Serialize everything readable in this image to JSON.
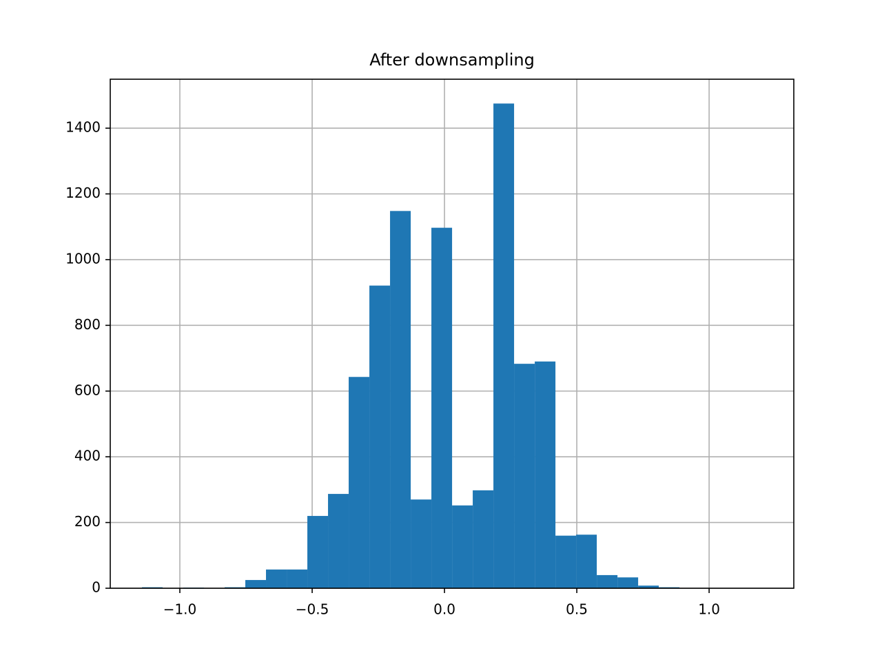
{
  "chart_data": {
    "type": "histogram",
    "title": "After downsampling",
    "color": "#1f77b4",
    "grid": true,
    "bins": [
      -1.1432,
      -1.0651,
      -0.987,
      -0.9088,
      -0.8307,
      -0.7526,
      -0.6745,
      -0.5963,
      -0.5182,
      -0.4401,
      -0.362,
      -0.2838,
      -0.2057,
      -0.1276,
      -0.0495,
      0.0287,
      0.1068,
      0.1849,
      0.263,
      0.3412,
      0.4193,
      0.4974,
      0.5755,
      0.6537,
      0.7318,
      0.8099,
      0.888,
      0.9662,
      1.0443,
      1.1224,
      1.2005
    ],
    "counts": [
      3,
      0,
      2,
      0,
      3,
      25,
      57,
      57,
      220,
      287,
      643,
      921,
      1148,
      270,
      1097,
      252,
      298,
      1475,
      683,
      690,
      160,
      163,
      40,
      33,
      8,
      3,
      1,
      0,
      0,
      1
    ],
    "xlim": [
      -1.263,
      1.32
    ],
    "ylim": [
      0,
      1549
    ],
    "xticks": [
      {
        "value": -1.0,
        "label": "−1.0"
      },
      {
        "value": -0.5,
        "label": "−0.5"
      },
      {
        "value": 0,
        "label": "0.0"
      },
      0.5,
      {
        "value": 1.0,
        "label": "1.0"
      }
    ],
    "yticks": [
      0,
      200,
      400,
      600,
      800,
      1000,
      1200,
      1400
    ]
  }
}
